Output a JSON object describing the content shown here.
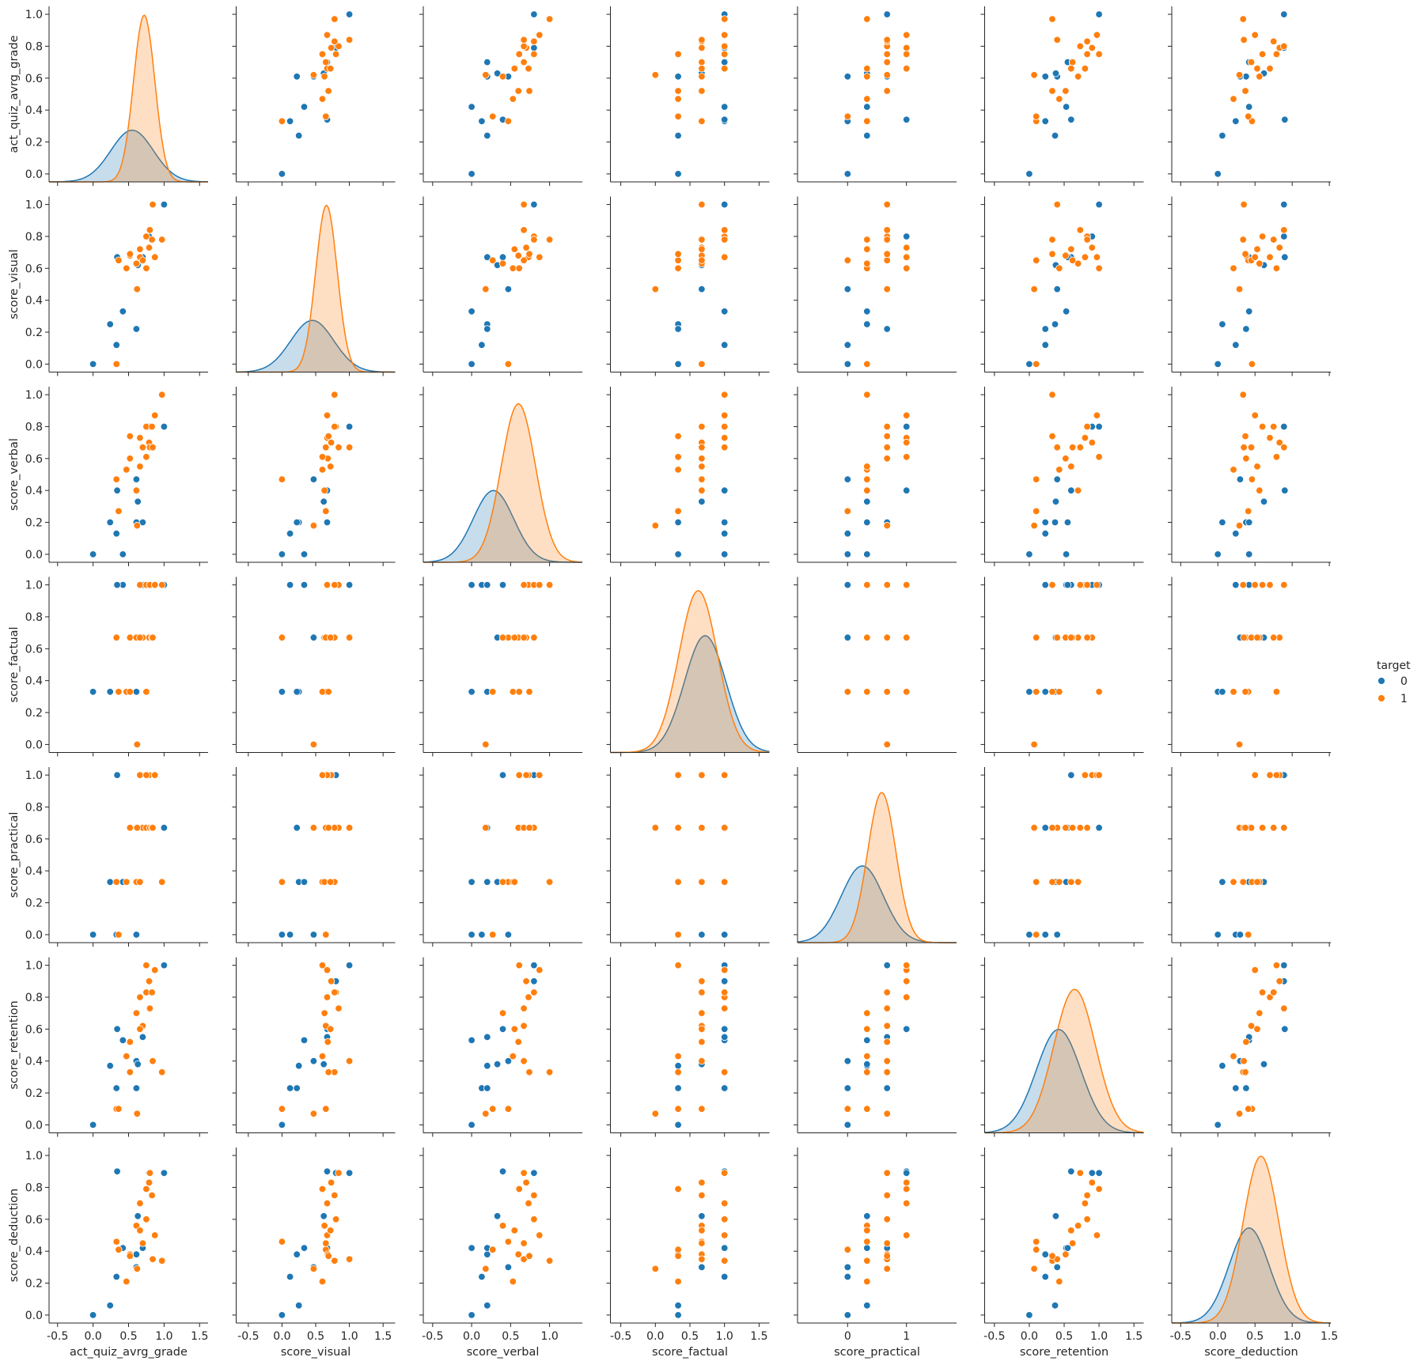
{
  "chart_data": {
    "type": "scatter",
    "subtype": "pairplot",
    "variables": [
      "act_quiz_avrg_grade",
      "score_visual",
      "score_verbal",
      "score_factual",
      "score_practical",
      "score_retention",
      "score_deduction"
    ],
    "diagonal": "kde",
    "hue": "target",
    "colors": {
      "0": "#1f77b4",
      "1": "#ff7f0e"
    },
    "legend": {
      "title": "target",
      "labels": [
        "0",
        "1"
      ],
      "placement": "center-right"
    },
    "x_ticks": [
      [
        -0.5,
        0.0,
        0.5,
        1.0,
        1.5
      ],
      [
        -0.5,
        0.0,
        0.5,
        1.0,
        1.5
      ],
      [
        -0.5,
        0.0,
        0.5,
        1.0
      ],
      [
        -0.5,
        0.0,
        0.5,
        1.0,
        1.5
      ],
      [
        0,
        1
      ],
      [
        -0.5,
        0.0,
        0.5,
        1.0,
        1.5
      ],
      [
        -0.5,
        0.0,
        0.5,
        1.0,
        1.5
      ]
    ],
    "x_tick_labels": [
      [
        "-0.5",
        "0.0",
        "0.5",
        "1.0",
        "1.5"
      ],
      [
        "-0.5",
        "0.0",
        "0.5",
        "1.0",
        "1.5"
      ],
      [
        "-0.5",
        "0.0",
        "0.5",
        "1.0"
      ],
      [
        "-0.5",
        "0.0",
        "0.5",
        "1.0",
        "1.5"
      ],
      [
        "0",
        "1"
      ],
      [
        "-0.5",
        "0.0",
        "0.5",
        "1.0",
        "1.5"
      ],
      [
        "-0.5",
        "0.0",
        "0.5",
        "1.0",
        "1.5"
      ]
    ],
    "x_lim": [
      [
        -0.62,
        1.62
      ],
      [
        -0.68,
        1.68
      ],
      [
        -0.62,
        1.42
      ],
      [
        -0.65,
        1.65
      ],
      [
        -0.85,
        1.85
      ],
      [
        -0.64,
        1.64
      ],
      [
        -0.62,
        1.52
      ]
    ],
    "y_ticks": [
      0.0,
      0.2,
      0.4,
      0.6,
      0.8,
      1.0
    ],
    "y_tick_labels": [
      "0.0",
      "0.2",
      "0.4",
      "0.6",
      "0.8",
      "1.0"
    ],
    "y_lim": [
      -0.05,
      1.05
    ],
    "kde": {
      "0": [
        {
          "mean": 0.55,
          "sd": 0.3,
          "peak": 0.31
        },
        {
          "mean": 0.45,
          "sd": 0.32,
          "peak": 0.31
        },
        {
          "mean": 0.28,
          "sd": 0.26,
          "peak": 0.43
        },
        {
          "mean": 0.72,
          "sd": 0.3,
          "peak": 0.7
        },
        {
          "mean": 0.25,
          "sd": 0.36,
          "peak": 0.46
        },
        {
          "mean": 0.42,
          "sd": 0.32,
          "peak": 0.62
        },
        {
          "mean": 0.42,
          "sd": 0.27,
          "peak": 0.57
        }
      ],
      "1": [
        {
          "mean": 0.72,
          "sd": 0.15,
          "peak": 1.0
        },
        {
          "mean": 0.66,
          "sd": 0.16,
          "peak": 1.0
        },
        {
          "mean": 0.6,
          "sd": 0.22,
          "peak": 0.95
        },
        {
          "mean": 0.62,
          "sd": 0.28,
          "peak": 0.97
        },
        {
          "mean": 0.58,
          "sd": 0.24,
          "peak": 0.9
        },
        {
          "mean": 0.65,
          "sd": 0.3,
          "peak": 0.86
        },
        {
          "mean": 0.58,
          "sd": 0.24,
          "peak": 1.0
        }
      ]
    },
    "points": [
      {
        "target": 0,
        "values": [
          0.0,
          0.0,
          0.0,
          0.33,
          0.0,
          0.0,
          0.0
        ]
      },
      {
        "target": 0,
        "values": [
          0.24,
          0.25,
          0.2,
          0.33,
          0.33,
          0.37,
          0.06
        ]
      },
      {
        "target": 0,
        "values": [
          0.33,
          0.12,
          0.13,
          1.0,
          0.0,
          0.23,
          0.24
        ]
      },
      {
        "target": 0,
        "values": [
          0.42,
          0.33,
          0.0,
          1.0,
          0.33,
          0.53,
          0.42
        ]
      },
      {
        "target": 0,
        "values": [
          0.61,
          0.22,
          0.2,
          0.33,
          0.67,
          0.23,
          0.38
        ]
      },
      {
        "target": 0,
        "values": [
          0.34,
          0.67,
          0.4,
          1.0,
          1.0,
          0.6,
          0.9
        ]
      },
      {
        "target": 0,
        "values": [
          0.61,
          0.47,
          0.47,
          0.67,
          0.0,
          0.4,
          0.3
        ]
      },
      {
        "target": 0,
        "values": [
          0.63,
          0.62,
          0.33,
          0.67,
          0.33,
          0.38,
          0.62
        ]
      },
      {
        "target": 0,
        "values": [
          0.79,
          0.8,
          0.8,
          1.0,
          1.0,
          0.9,
          0.89
        ]
      },
      {
        "target": 0,
        "values": [
          1.0,
          1.0,
          0.8,
          1.0,
          0.67,
          1.0,
          0.89
        ]
      },
      {
        "target": 0,
        "values": [
          0.7,
          0.67,
          0.2,
          1.0,
          0.67,
          0.55,
          0.42
        ]
      },
      {
        "target": 1,
        "values": [
          0.33,
          0.0,
          0.47,
          0.67,
          0.33,
          0.1,
          0.46
        ]
      },
      {
        "target": 1,
        "values": [
          0.36,
          0.65,
          0.27,
          0.33,
          0.0,
          0.1,
          0.41
        ]
      },
      {
        "target": 1,
        "values": [
          0.47,
          0.6,
          0.53,
          0.33,
          0.33,
          0.43,
          0.21
        ]
      },
      {
        "target": 1,
        "values": [
          0.52,
          0.68,
          0.6,
          0.67,
          0.67,
          0.52,
          0.38
        ]
      },
      {
        "target": 1,
        "values": [
          0.61,
          0.63,
          0.4,
          0.67,
          0.33,
          0.7,
          0.56
        ]
      },
      {
        "target": 1,
        "values": [
          0.66,
          0.67,
          0.73,
          1.0,
          1.0,
          0.8,
          0.7
        ]
      },
      {
        "target": 1,
        "values": [
          0.7,
          0.65,
          0.67,
          0.67,
          0.67,
          0.62,
          0.45
        ]
      },
      {
        "target": 1,
        "values": [
          0.75,
          0.8,
          0.8,
          1.0,
          0.67,
          0.83,
          0.6
        ]
      },
      {
        "target": 1,
        "values": [
          0.79,
          0.73,
          0.7,
          0.67,
          1.0,
          0.9,
          0.83
        ]
      },
      {
        "target": 1,
        "values": [
          0.8,
          0.84,
          0.67,
          1.0,
          0.67,
          0.73,
          0.89
        ]
      },
      {
        "target": 1,
        "values": [
          0.83,
          0.78,
          0.8,
          0.67,
          0.67,
          0.83,
          0.75
        ]
      },
      {
        "target": 1,
        "values": [
          0.87,
          0.67,
          0.87,
          1.0,
          1.0,
          0.97,
          0.5
        ]
      },
      {
        "target": 1,
        "values": [
          0.97,
          0.78,
          1.0,
          1.0,
          0.33,
          0.33,
          0.34
        ]
      },
      {
        "target": 1,
        "values": [
          0.62,
          0.47,
          0.18,
          0.0,
          0.67,
          0.07,
          0.29
        ]
      },
      {
        "target": 1,
        "values": [
          0.75,
          0.6,
          0.61,
          0.33,
          1.0,
          1.0,
          0.79
        ]
      },
      {
        "target": 1,
        "values": [
          0.84,
          1.0,
          0.67,
          0.67,
          0.67,
          0.4,
          0.35
        ]
      },
      {
        "target": 1,
        "values": [
          0.52,
          0.69,
          0.74,
          0.33,
          0.67,
          0.33,
          0.37
        ]
      },
      {
        "target": 1,
        "values": [
          0.66,
          0.72,
          0.55,
          0.67,
          0.33,
          0.6,
          0.53
        ]
      }
    ]
  }
}
